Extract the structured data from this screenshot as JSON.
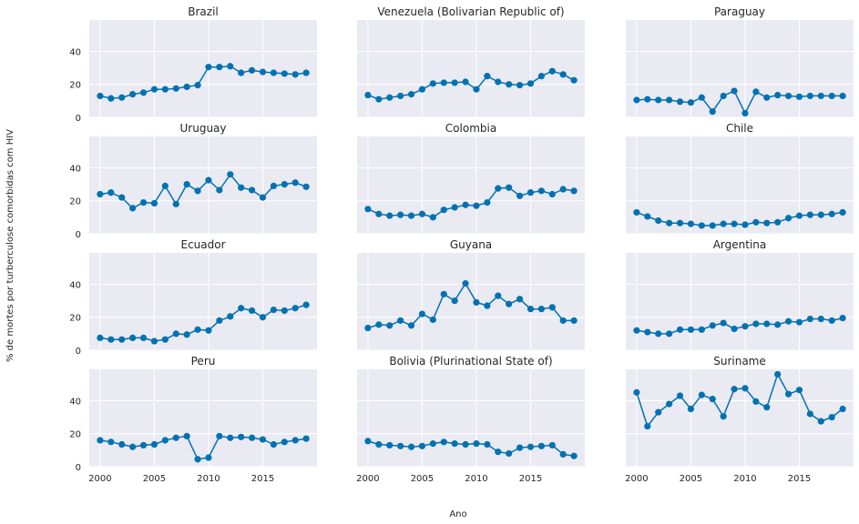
{
  "figure": {
    "ylabel": "% de mortes por turberculose comorbidas com HIV",
    "xlabel": "Ano"
  },
  "style": {
    "panel_bg": "#eaeaf2",
    "grid": "#ffffff",
    "line": "#0072b2",
    "text": "#262626"
  },
  "chart_data": {
    "type": "line",
    "layout": "4x3 small multiples, shared x and y axes",
    "x": [
      2000,
      2001,
      2002,
      2003,
      2004,
      2005,
      2006,
      2007,
      2008,
      2009,
      2010,
      2011,
      2012,
      2013,
      2014,
      2015,
      2016,
      2017,
      2018,
      2019
    ],
    "xticks": [
      2000,
      2005,
      2010,
      2015
    ],
    "xtick_labels": [
      "2000",
      "2005",
      "2010",
      "2015"
    ],
    "xlim": [
      1999,
      2020
    ],
    "yticks": [
      0,
      20,
      40
    ],
    "ytick_labels": [
      "0",
      "20",
      "40"
    ],
    "ylim": [
      0,
      59
    ],
    "grid": true,
    "marker": "circle",
    "panels": [
      {
        "title": "Brazil",
        "values": [
          13,
          11.5,
          12,
          14,
          15,
          17,
          17,
          17.5,
          18.5,
          19.5,
          30.5,
          30.5,
          31,
          27,
          28.5,
          27.5,
          27,
          26.5,
          26,
          27
        ]
      },
      {
        "title": "Venezuela (Bolivarian Republic of)",
        "values": [
          13.5,
          11,
          12,
          13,
          14,
          17,
          20.5,
          21,
          21,
          21.5,
          17,
          25,
          21.5,
          20,
          19.5,
          20.5,
          25,
          28,
          26,
          22.5
        ]
      },
      {
        "title": "Paraguay",
        "values": [
          10.5,
          11,
          10.5,
          10.5,
          9.5,
          9,
          12,
          3.5,
          13,
          16,
          2.5,
          15.5,
          12,
          13.5,
          13,
          12.5,
          13,
          13,
          13,
          13
        ]
      },
      {
        "title": "Uruguay",
        "values": [
          24,
          25,
          22,
          15.5,
          19,
          18.5,
          29,
          18,
          30,
          26,
          32.5,
          26.5,
          36,
          28,
          26.5,
          22,
          29,
          30,
          31,
          28.5
        ]
      },
      {
        "title": "Colombia",
        "values": [
          15,
          12,
          11,
          11.5,
          11,
          12,
          10,
          14.5,
          16,
          17.5,
          17,
          19,
          27.5,
          28,
          23,
          25,
          26,
          24,
          27,
          26
        ]
      },
      {
        "title": "Chile",
        "values": [
          13,
          10.5,
          8,
          6.5,
          6.5,
          6,
          5,
          5,
          6,
          6,
          5.5,
          7,
          6.5,
          7,
          9.5,
          11,
          11.5,
          11.5,
          12,
          13
        ]
      },
      {
        "title": "Ecuador",
        "values": [
          7.5,
          6.5,
          6.5,
          7.5,
          7.5,
          5.5,
          6.5,
          10,
          9.5,
          12.5,
          12,
          18,
          20.5,
          25.5,
          24,
          20,
          24.5,
          24,
          25.5,
          27.5
        ]
      },
      {
        "title": "Guyana",
        "values": [
          13.5,
          15.5,
          15,
          18,
          15,
          22,
          18.5,
          34,
          30,
          40.5,
          29,
          27,
          33,
          28,
          31,
          25,
          25,
          26,
          18,
          18
        ]
      },
      {
        "title": "Argentina",
        "values": [
          12,
          11,
          10,
          10,
          12.5,
          12.5,
          12.5,
          15,
          16.5,
          13,
          14.5,
          16,
          16,
          15.5,
          17.5,
          17,
          19,
          19,
          18,
          19.5
        ]
      },
      {
        "title": "Peru",
        "values": [
          16,
          15,
          13.5,
          12,
          13,
          13.5,
          16,
          17.5,
          18.5,
          4.5,
          5.5,
          18.5,
          17.5,
          18,
          17.5,
          16.5,
          13.5,
          15,
          16,
          17
        ]
      },
      {
        "title": "Bolivia (Plurinational State of)",
        "values": [
          15.5,
          13.5,
          13,
          12.5,
          12,
          12.5,
          14,
          15,
          14,
          13.5,
          14,
          13.5,
          9,
          8,
          11.5,
          12,
          12.5,
          13,
          7.5,
          6.5
        ]
      },
      {
        "title": "Suriname",
        "values": [
          45,
          24.5,
          33,
          38,
          43,
          35,
          43.5,
          41,
          30.5,
          47,
          47.5,
          39.5,
          36,
          56,
          44,
          46.5,
          32,
          27.5,
          30,
          35
        ]
      }
    ]
  }
}
